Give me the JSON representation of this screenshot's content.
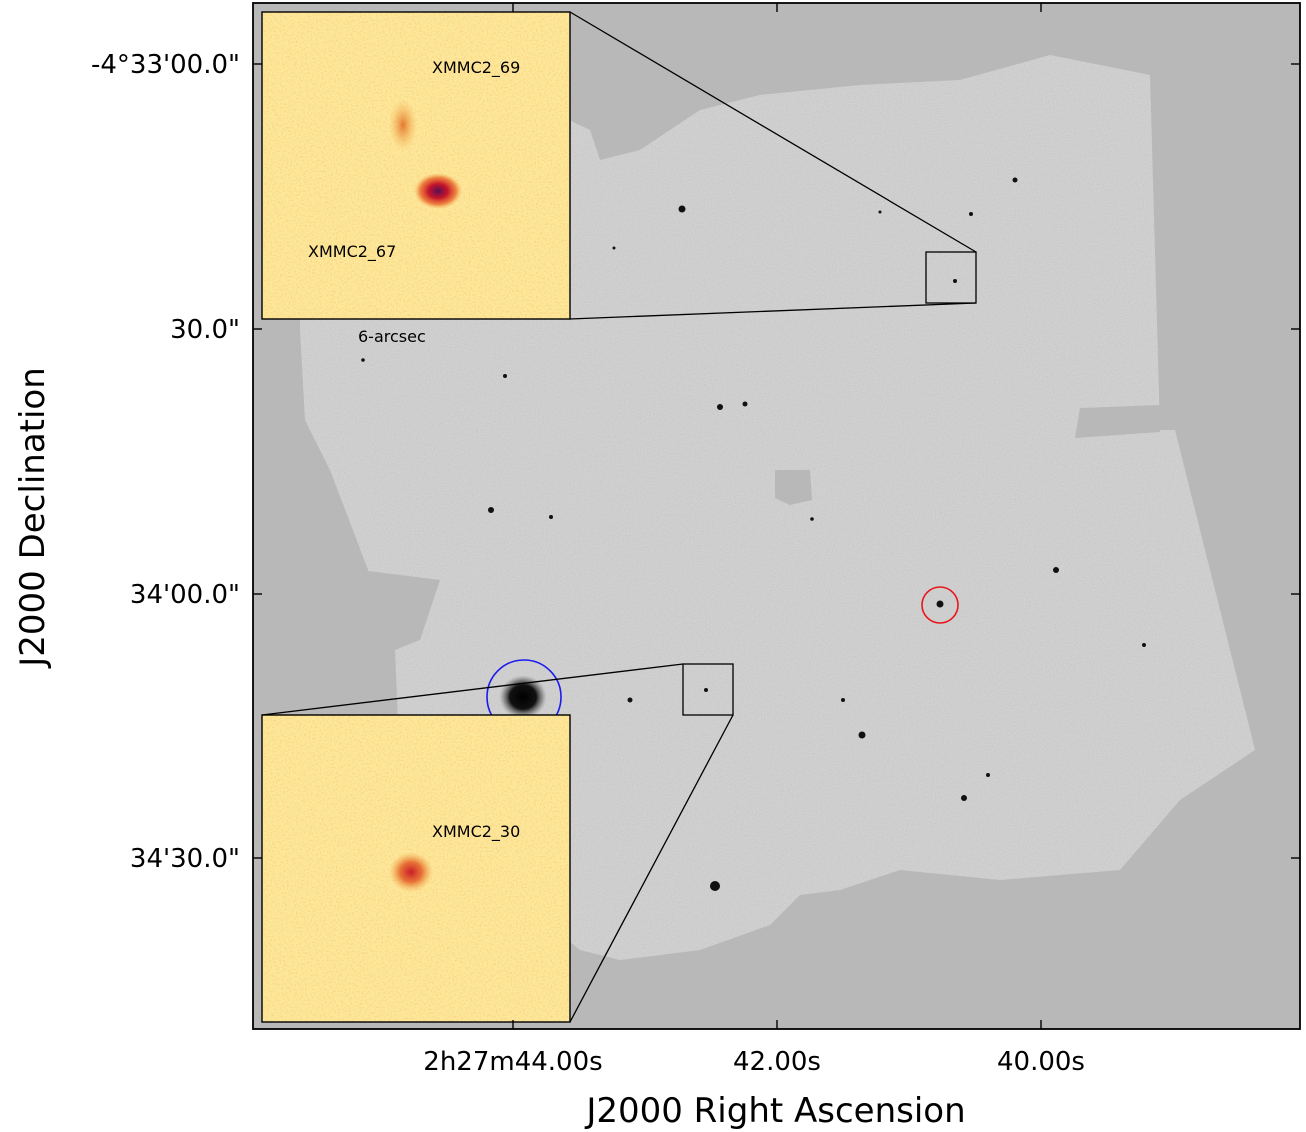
{
  "axes": {
    "xlabel": "J2000 Right Ascension",
    "ylabel": "J2000 Declination",
    "x_ticks": [
      "2h27m44.00s",
      "42.00s",
      "40.00s"
    ],
    "y_ticks": [
      "-4°33'00.0\"",
      "30.0\"",
      "34'00.0\"",
      "34'30.0\""
    ]
  },
  "insets": [
    {
      "name": "inset-top",
      "labels": [
        "XMMC2_69",
        "XMMC2_67"
      ],
      "scale_label": "6-arcsec"
    },
    {
      "name": "inset-bottom",
      "labels": [
        "XMMC2_30"
      ]
    }
  ],
  "colors": {
    "background": "#b8b8b8",
    "mosaic": "#d0d0d0",
    "inset_bg": "#fde79a",
    "red_marker": "#e8161b",
    "blue_marker": "#1a1aee"
  }
}
